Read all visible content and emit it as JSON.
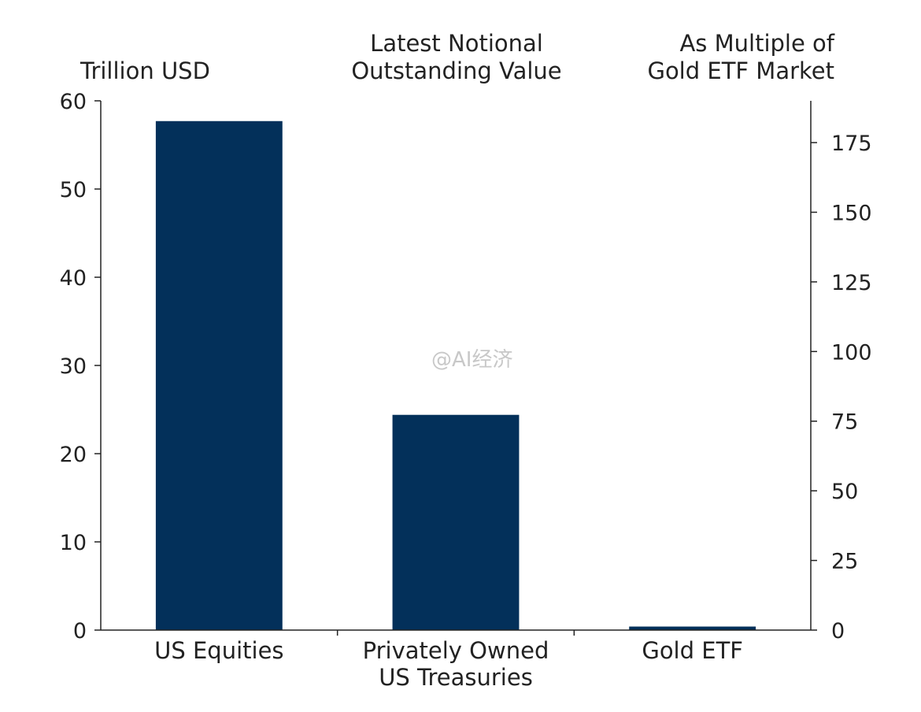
{
  "chart_data": {
    "type": "bar",
    "titles": {
      "left_axis_unit": "Trillion USD",
      "center": [
        "Latest Notional",
        "Outstanding Value"
      ],
      "right_axis_unit": [
        "As Multiple of",
        "Gold ETF Market"
      ]
    },
    "categories": [
      [
        "US Equities"
      ],
      [
        "Privately Owned",
        "US Treasuries"
      ],
      [
        "Gold ETF"
      ]
    ],
    "values": [
      57.7,
      24.4,
      0.4
    ],
    "color": "#03305a",
    "y_left": {
      "ylim": [
        0,
        60
      ],
      "ticks": [
        0,
        10,
        20,
        30,
        40,
        50,
        60
      ]
    },
    "y_right": {
      "ylim": [
        0,
        190
      ],
      "ticks": [
        0,
        25,
        50,
        75,
        100,
        125,
        150,
        175
      ]
    },
    "grid": false,
    "legend": "none"
  },
  "watermark": "@AI经济"
}
